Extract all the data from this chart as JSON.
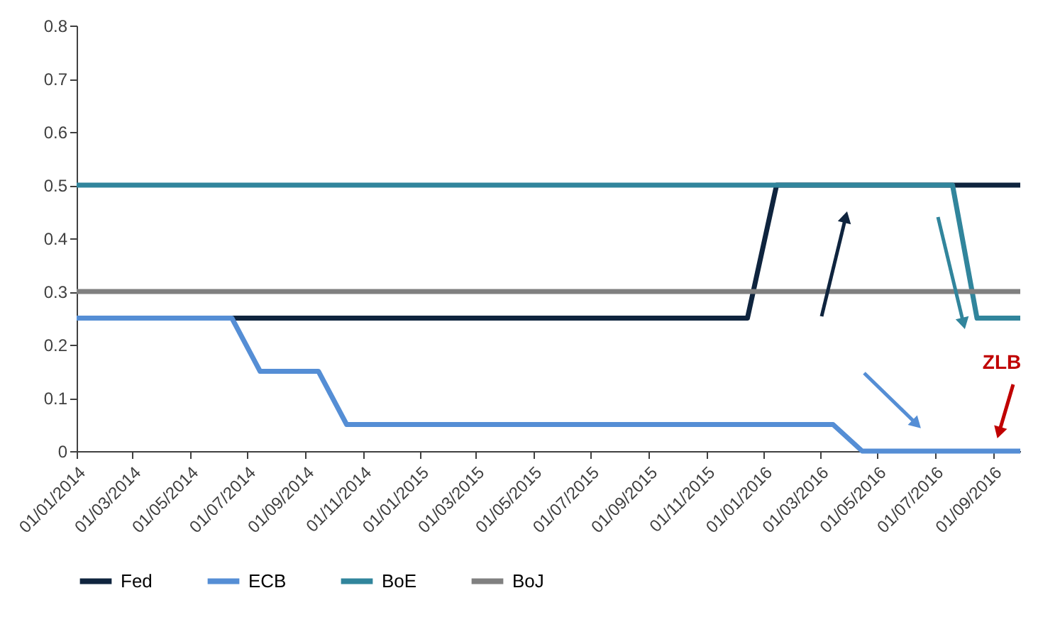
{
  "chart_data": {
    "type": "line",
    "xlim": [
      "2014-01-01",
      "2016-09-30"
    ],
    "ylim": [
      0,
      0.8
    ],
    "yticks": [
      0,
      0.1,
      0.2,
      0.3,
      0.4,
      0.5,
      0.6,
      0.7,
      0.8
    ],
    "xticks": [
      {
        "value": "2014-01-01",
        "label": "01/01/2014"
      },
      {
        "value": "2014-03-01",
        "label": "01/03/2014"
      },
      {
        "value": "2014-05-01",
        "label": "01/05/2014"
      },
      {
        "value": "2014-07-01",
        "label": "01/07/2014"
      },
      {
        "value": "2014-09-01",
        "label": "01/09/2014"
      },
      {
        "value": "2014-11-01",
        "label": "01/11/2014"
      },
      {
        "value": "2015-01-01",
        "label": "01/01/2015"
      },
      {
        "value": "2015-03-01",
        "label": "01/03/2015"
      },
      {
        "value": "2015-05-01",
        "label": "01/05/2015"
      },
      {
        "value": "2015-07-01",
        "label": "01/07/2015"
      },
      {
        "value": "2015-09-01",
        "label": "01/09/2015"
      },
      {
        "value": "2015-11-01",
        "label": "01/11/2015"
      },
      {
        "value": "2016-01-01",
        "label": "01/01/2016"
      },
      {
        "value": "2016-03-01",
        "label": "01/03/2016"
      },
      {
        "value": "2016-05-01",
        "label": "01/05/2016"
      },
      {
        "value": "2016-07-01",
        "label": "01/07/2016"
      },
      {
        "value": "2016-09-01",
        "label": "01/09/2016"
      }
    ],
    "grid": false,
    "legend": "bottom",
    "line_style": "solid",
    "marker": "none",
    "series": [
      {
        "name": "Fed",
        "color": "#0f243e",
        "x": [
          "2014-01-01",
          "2015-12-15",
          "2016-01-15",
          "2016-09-30"
        ],
        "values": [
          0.25,
          0.25,
          0.5,
          0.5
        ]
      },
      {
        "name": "ECB",
        "color": "#558ed5",
        "x": [
          "2014-01-01",
          "2014-06-15",
          "2014-07-15",
          "2014-09-15",
          "2014-10-15",
          "2016-03-15",
          "2016-04-15",
          "2016-09-30"
        ],
        "values": [
          0.25,
          0.25,
          0.15,
          0.15,
          0.05,
          0.05,
          0,
          0
        ]
      },
      {
        "name": "BoE",
        "color": "#31859c",
        "x": [
          "2014-01-01",
          "2016-07-20",
          "2016-08-15",
          "2016-09-30"
        ],
        "values": [
          0.5,
          0.5,
          0.25,
          0.25
        ]
      },
      {
        "name": "BoJ",
        "color": "#808080",
        "x": [
          "2014-01-01",
          "2016-09-30"
        ],
        "values": [
          0.3,
          0.3
        ]
      }
    ],
    "annotations": [
      "ZLB"
    ]
  }
}
